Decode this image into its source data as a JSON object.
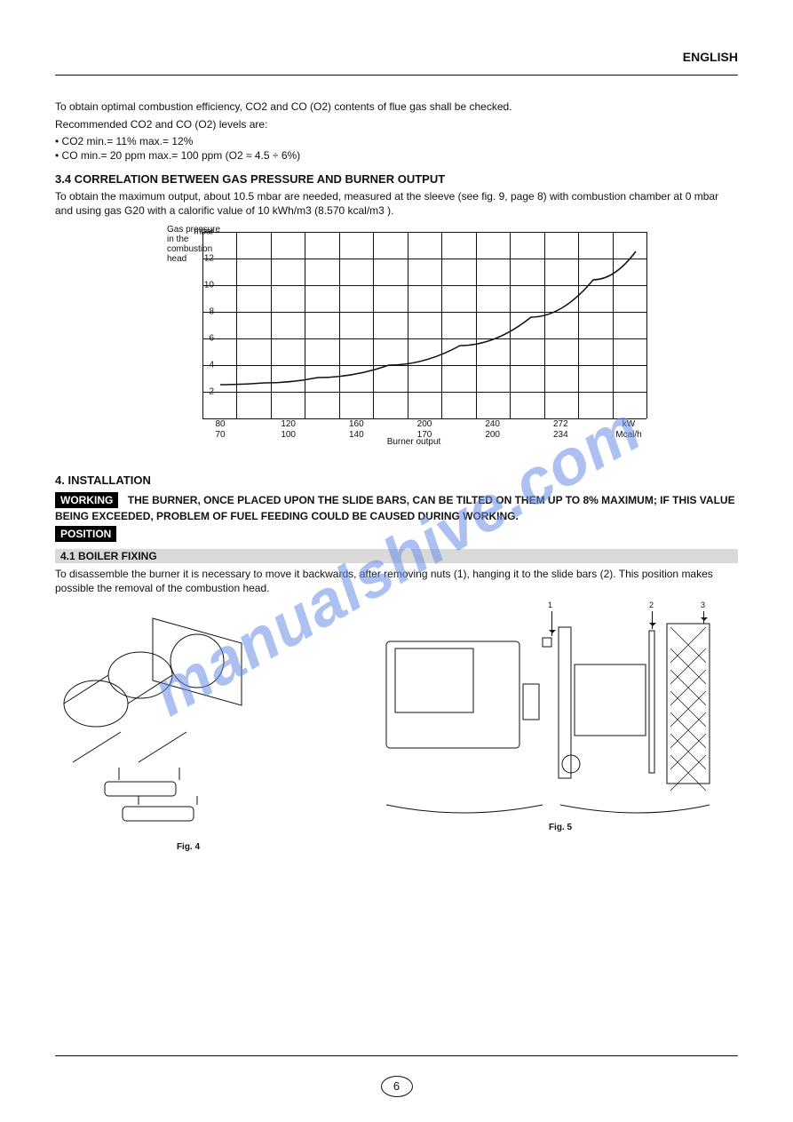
{
  "page": {
    "header_right": "ENGLISH",
    "number": "6"
  },
  "watermark": "manualshive.com",
  "intro": {
    "p1": "To obtain optimal combustion efficiency, CO2 and CO (O2) contents of flue gas shall be checked.",
    "p2": "Recommended CO2 and CO (O2) levels are:",
    "line_co2": "• CO2  min.= 11%   max.= 12%",
    "line_co": "• CO    min.= 20 ppm   max.= 100 ppm  (O2 ≈ 4.5 ÷ 6%)"
  },
  "chart": {
    "title": "3.4  CORRELATION BETWEEN GAS PRESSURE AND BURNER OUTPUT",
    "desc": "To obtain the maximum output, about 10.5 mbar are needed, measured at the sleeve (see fig. 9, page 8) with combustion chamber at 0 mbar and using gas G20 with a calorific value of 10 kWh/m3 (8.570 kcal/m3 ).",
    "x_label": "Burner output",
    "y_label_top": "Gas pressure\nin the\ncombustion\nhead",
    "x_ticks": [
      "80",
      "120",
      "160",
      "200",
      "240",
      "272",
      "kW"
    ],
    "x_ticks2": [
      "70",
      "100",
      "140",
      "170",
      "200",
      "234",
      "Mcal/h"
    ],
    "y_ticks": [
      "2",
      "4",
      "6",
      "8",
      "10",
      "12",
      "mbar"
    ],
    "grid": {
      "cols": 13,
      "rows": 7
    },
    "curve_points": [
      [
        20,
        172
      ],
      [
        70,
        170
      ],
      [
        130,
        164
      ],
      [
        210,
        150
      ],
      [
        290,
        128
      ],
      [
        370,
        96
      ],
      [
        440,
        54
      ],
      [
        488,
        22
      ]
    ],
    "background": "#ffffff",
    "grid_color": "#111111",
    "curve_stroke": "#111111",
    "curve_width": 1.5
  },
  "install": {
    "bar": "4.1  BOILER FIXING",
    "head4": "4.   INSTALLATION",
    "warn_black": "WORKING",
    "warn_black2": "POSITION",
    "warn": "THE BURNER, ONCE PLACED UPON THE SLIDE BARS, CAN BE TILTED ON THEM UP TO 8% MAXIMUM; IF THIS VALUE BEING EXCEEDED, PROBLEM OF FUEL FEEDING COULD BE CAUSED DURING WORKING.",
    "right_text": "To disassemble the burner it is necessary to move it backwards, after removing nuts (1), hanging it to the slide bars (2). This position makes possible the removal of the combustion head.",
    "callouts": {
      "one": "1",
      "two": "2",
      "three": "3"
    },
    "fig_left_cap": "Fig. 4",
    "fig_right_cap": "Fig. 5",
    "fig_brace_l": "",
    "fig_brace_r": ""
  }
}
